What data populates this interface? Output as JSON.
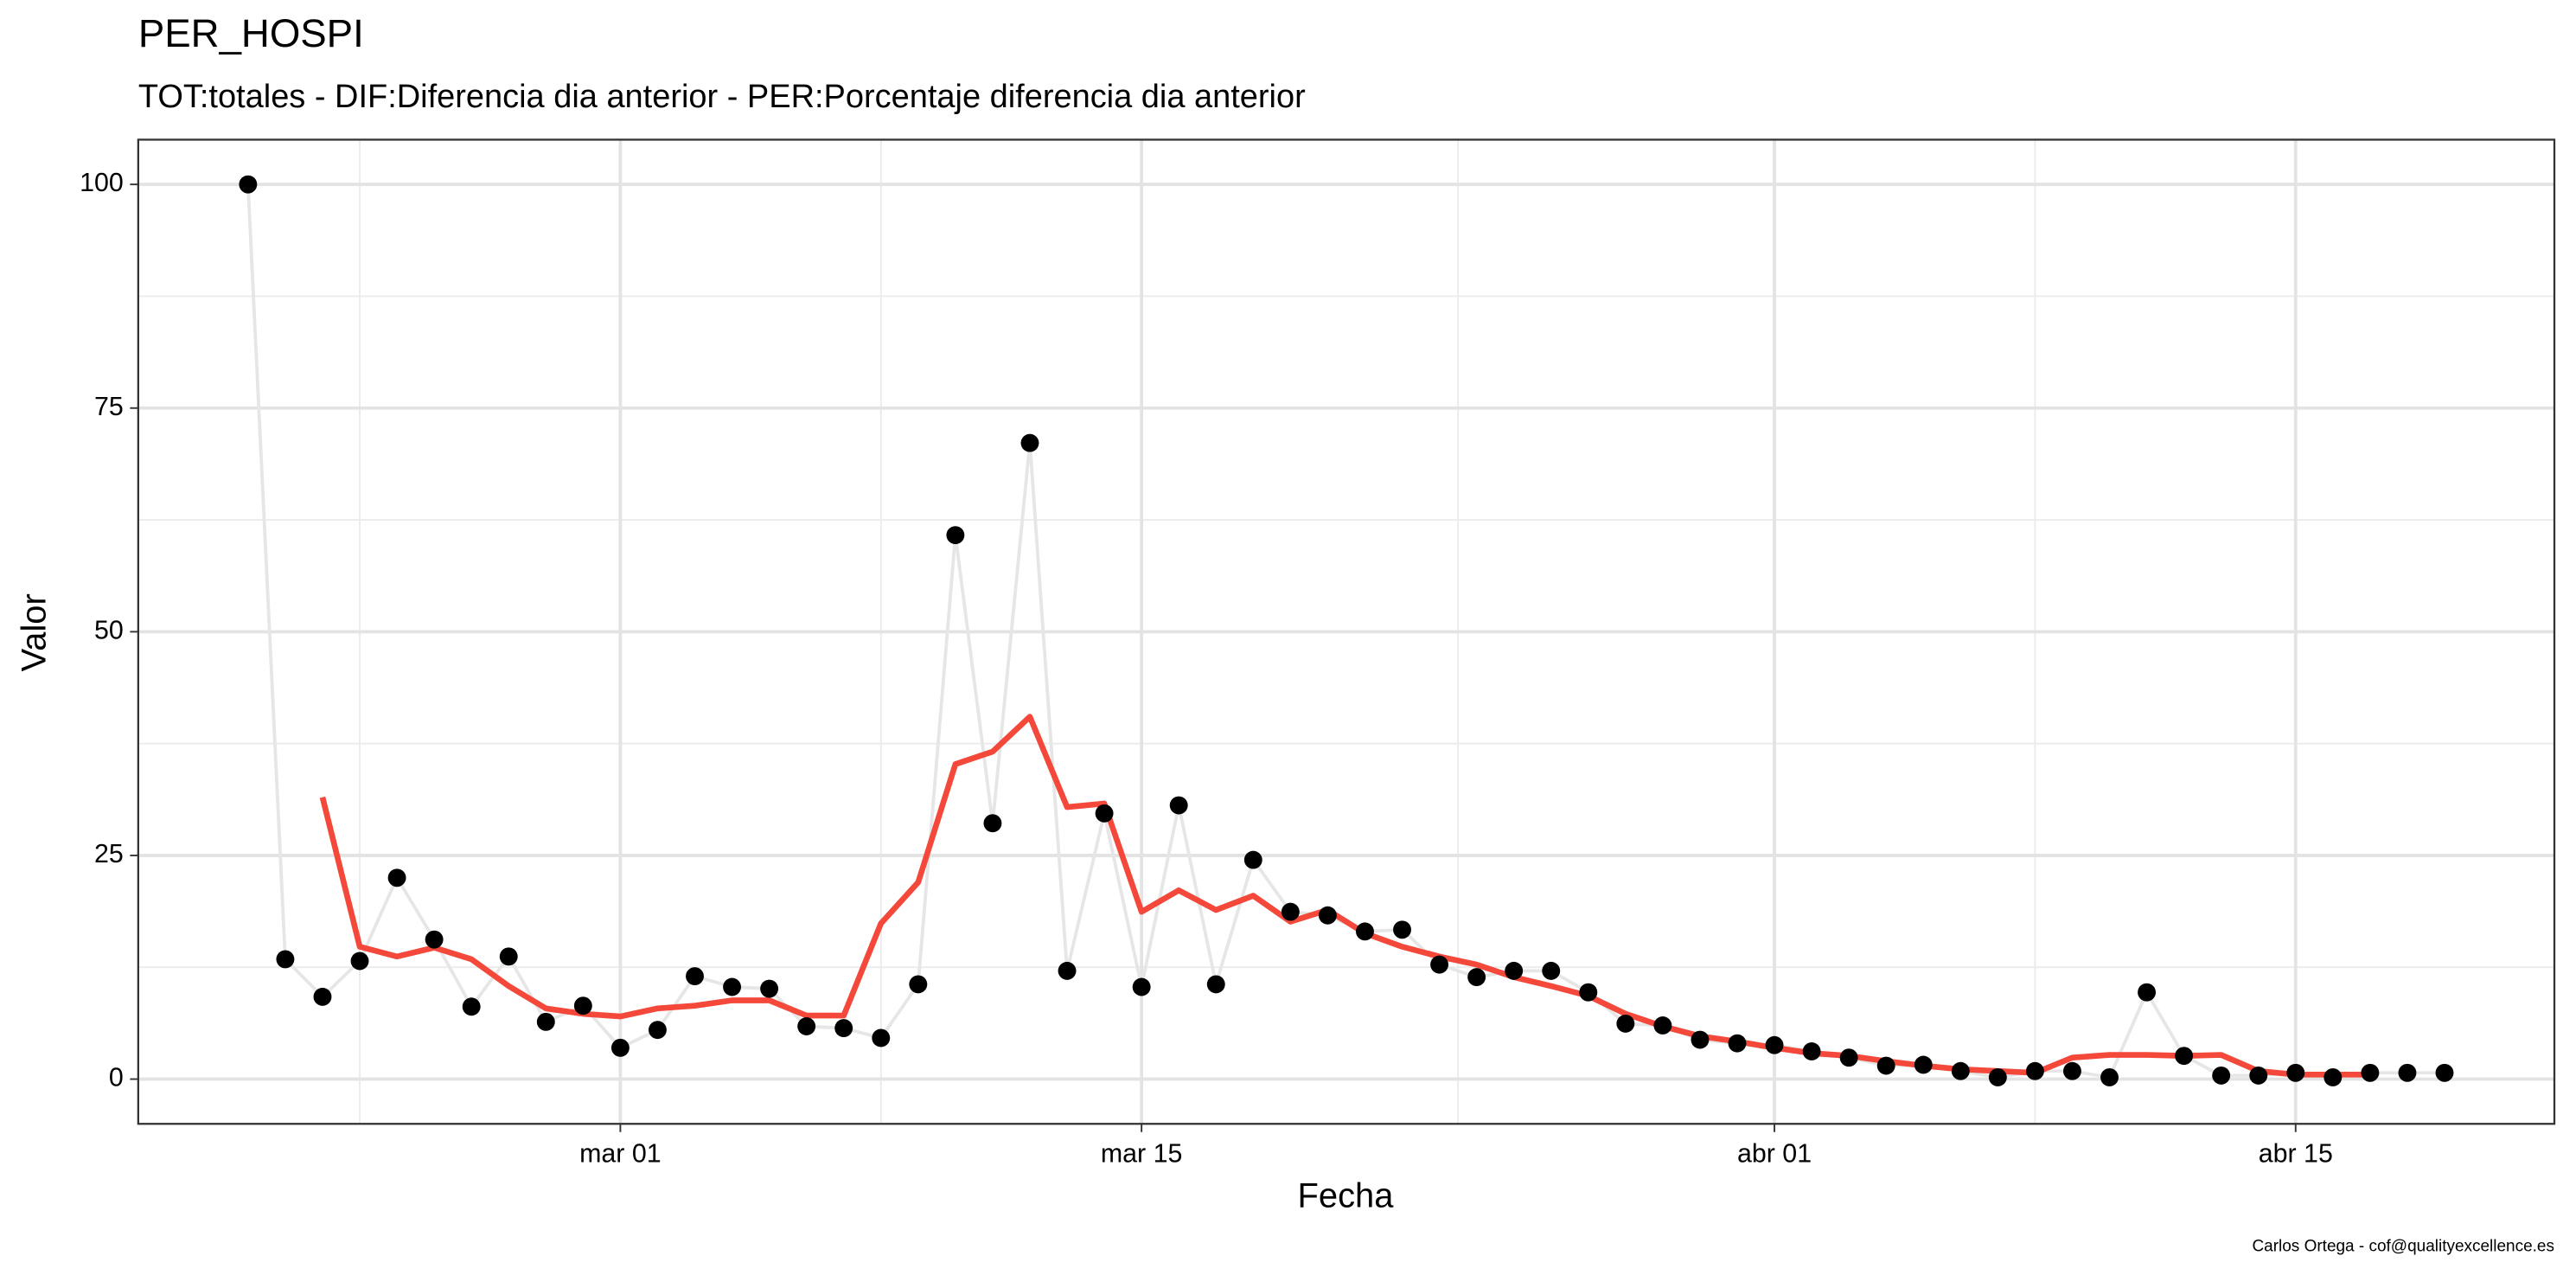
{
  "chart_data": {
    "type": "line",
    "title": "PER_HOSPI",
    "subtitle": "TOT:totales - DIF:Diferencia dia anterior - PER:Porcentaje diferencia dia anterior",
    "x_label": "Fecha",
    "y_label": "Valor",
    "caption": "Carlos Ortega - cof@qualityexcellence.es",
    "x": [
      "02-20",
      "02-21",
      "02-22",
      "02-23",
      "02-24",
      "02-25",
      "02-26",
      "02-27",
      "02-28",
      "02-29",
      "03-01",
      "03-02",
      "03-03",
      "03-04",
      "03-05",
      "03-06",
      "03-07",
      "03-08",
      "03-09",
      "03-10",
      "03-11",
      "03-12",
      "03-13",
      "03-14",
      "03-15",
      "03-16",
      "03-17",
      "03-18",
      "03-19",
      "03-20",
      "03-21",
      "03-22",
      "03-23",
      "03-24",
      "03-25",
      "03-26",
      "03-27",
      "03-28",
      "03-29",
      "03-30",
      "03-31",
      "04-01",
      "04-02",
      "04-03",
      "04-04",
      "04-05",
      "04-06",
      "04-07",
      "04-08",
      "04-09",
      "04-10",
      "04-11",
      "04-12",
      "04-13",
      "04-14",
      "04-15",
      "04-16",
      "04-17",
      "04-18",
      "04-19"
    ],
    "xticks": [
      {
        "value": "03-01",
        "label": "mar 01"
      },
      {
        "value": "03-15",
        "label": "mar 15"
      },
      {
        "value": "04-01",
        "label": "abr 01"
      },
      {
        "value": "04-15",
        "label": "abr 15"
      }
    ],
    "ylim": [
      -5,
      105
    ],
    "yticks": [
      0,
      25,
      50,
      75,
      100
    ],
    "grid": true,
    "series": [
      {
        "color": "#000000",
        "line_color": "#e6e6e6",
        "marker": true,
        "values": [
          100,
          13.4,
          9.2,
          13.2,
          22.5,
          15.6,
          8.1,
          13.7,
          6.4,
          8.2,
          3.5,
          5.5,
          11.5,
          10.3,
          10.1,
          5.9,
          5.7,
          4.6,
          10.6,
          60.8,
          28.6,
          71.1,
          12.1,
          29.7,
          10.3,
          30.6,
          10.6,
          24.5,
          18.7,
          18.3,
          16.5,
          16.7,
          12.8,
          11.4,
          12.1,
          12.1,
          9.7,
          6.2,
          6.0,
          4.4,
          4.0,
          3.8,
          3.1,
          2.4,
          1.5,
          1.6,
          0.9,
          0.2,
          0.9,
          0.9,
          0.2,
          9.7,
          2.6,
          0.4,
          0.4,
          0.7,
          0.2,
          0.7,
          0.7,
          0.7
        ]
      },
      {
        "color": "#f4483a",
        "marker": false,
        "values": [
          null,
          null,
          31.5,
          14.8,
          13.7,
          14.7,
          13.4,
          10.4,
          7.9,
          7.3,
          7.0,
          7.9,
          8.2,
          8.8,
          8.8,
          7.1,
          7.1,
          17.4,
          22.0,
          35.2,
          36.6,
          40.5,
          30.4,
          30.8,
          18.7,
          21.1,
          18.9,
          20.5,
          17.6,
          18.9,
          16.3,
          14.8,
          13.7,
          12.8,
          11.4,
          10.4,
          9.3,
          7.3,
          5.9,
          4.8,
          4.2,
          3.5,
          2.9,
          2.6,
          2.0,
          1.5,
          1.1,
          0.9,
          0.7,
          2.4,
          2.7,
          2.7,
          2.6,
          2.7,
          0.9,
          0.5,
          0.5,
          0.5,
          null,
          null
        ]
      }
    ]
  }
}
